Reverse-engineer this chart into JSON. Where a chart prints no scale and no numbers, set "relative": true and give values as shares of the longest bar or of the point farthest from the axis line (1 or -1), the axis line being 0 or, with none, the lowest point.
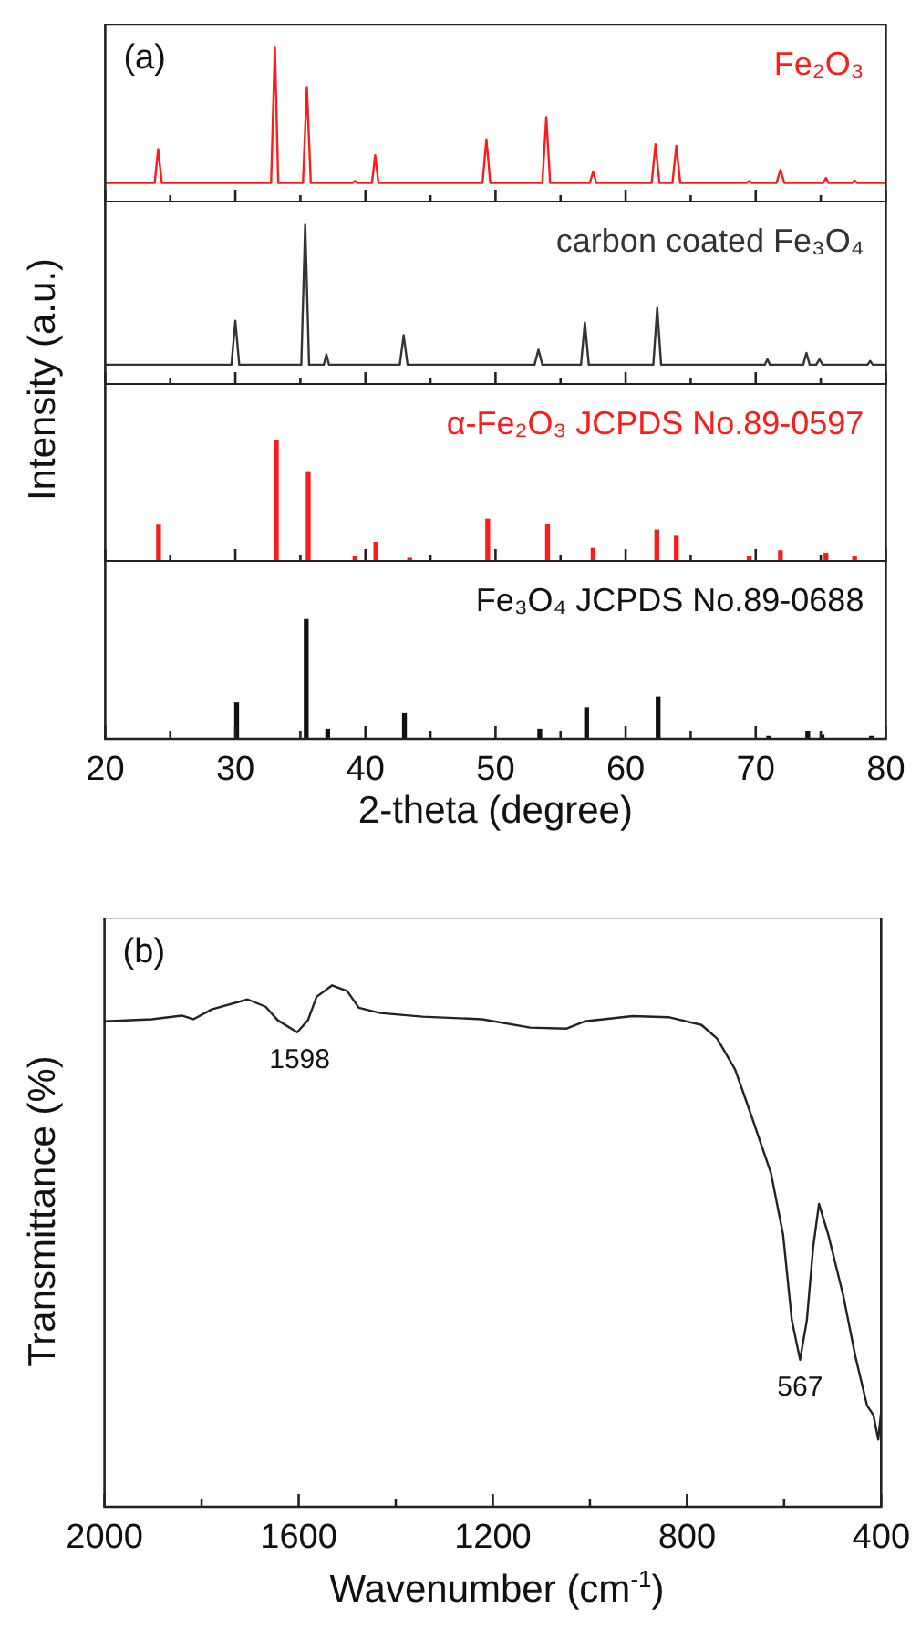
{
  "chart_data": [
    {
      "type": "line",
      "ylabel": "Intensity (a.u.)",
      "relative": true,
      "xlim": [
        20,
        80
      ],
      "xticks": [
        20,
        {
          "value": 25,
          "label": null
        },
        30,
        {
          "value": 35,
          "label": null
        },
        40,
        {
          "value": 45,
          "label": null
        },
        50,
        {
          "value": 55,
          "label": null
        },
        60,
        {
          "value": 65,
          "label": null
        },
        70,
        {
          "value": 75,
          "label": null
        },
        80
      ],
      "tick_labels": false,
      "annotations": [
        "(a)"
      ],
      "series": [
        {
          "name": "Fe₂O₃",
          "color": "#ff1a1a",
          "x": [
            20,
            23.8,
            24.07,
            24.35,
            32.75,
            33.04,
            33.3,
            35.2,
            35.5,
            35.8,
            39.0,
            39.2,
            39.4,
            40.5,
            40.75,
            41.0,
            49.0,
            49.3,
            49.6,
            53.6,
            53.9,
            54.2,
            57.25,
            57.5,
            57.75,
            62.0,
            62.3,
            62.6,
            63.6,
            63.9,
            64.2,
            69.3,
            69.5,
            69.7,
            71.6,
            71.9,
            72.2,
            75.2,
            75.4,
            75.6,
            77.4,
            77.6,
            77.8,
            80
          ],
          "values": [
            0.126,
            0.126,
            0.344,
            0.126,
            0.126,
            1,
            0.126,
            0.126,
            0.743,
            0.126,
            0.126,
            0.138,
            0.126,
            0.126,
            0.304,
            0.126,
            0.126,
            0.407,
            0.126,
            0.126,
            0.549,
            0.126,
            0.126,
            0.198,
            0.126,
            0.126,
            0.375,
            0.126,
            0.126,
            0.364,
            0.126,
            0.126,
            0.138,
            0.126,
            0.126,
            0.21,
            0.126,
            0.126,
            0.158,
            0.126,
            0.126,
            0.142,
            0.126,
            0.126
          ]
        }
      ]
    },
    {
      "type": "line",
      "relative": true,
      "xlim": [
        20,
        80
      ],
      "xticks": [
        20,
        {
          "value": 25,
          "label": null
        },
        30,
        {
          "value": 35,
          "label": null
        },
        40,
        {
          "value": 45,
          "label": null
        },
        50,
        {
          "value": 55,
          "label": null
        },
        60,
        {
          "value": 65,
          "label": null
        },
        70,
        {
          "value": 75,
          "label": null
        },
        80
      ],
      "tick_labels": false,
      "series": [
        {
          "name": "carbon coated Fe₃O₄",
          "color": "#333333",
          "x": [
            20,
            29.7,
            30,
            30.3,
            35.07,
            35.37,
            35.67,
            36.8,
            37,
            37.2,
            42.64,
            42.94,
            43.24,
            53.0,
            53.3,
            53.6,
            56.57,
            56.87,
            57.17,
            62.13,
            62.43,
            62.73,
            70.7,
            70.9,
            71.1,
            73.65,
            73.9,
            74.15,
            74.65,
            74.9,
            75.15,
            78.6,
            78.8,
            79.0,
            80
          ],
          "values": [
            0.126,
            0.126,
            0.4,
            0.126,
            0.126,
            1,
            0.126,
            0.126,
            0.19,
            0.126,
            0.126,
            0.31,
            0.126,
            0.126,
            0.22,
            0.126,
            0.126,
            0.39,
            0.126,
            0.126,
            0.48,
            0.126,
            0.126,
            0.16,
            0.126,
            0.126,
            0.2,
            0.126,
            0.126,
            0.16,
            0.126,
            0.126,
            0.15,
            0.126,
            0.126
          ]
        }
      ]
    },
    {
      "type": "bar",
      "relative": true,
      "xlim": [
        20,
        80
      ],
      "xticks": [
        20,
        {
          "value": 25,
          "label": null
        },
        30,
        {
          "value": 35,
          "label": null
        },
        40,
        {
          "value": 45,
          "label": null
        },
        50,
        {
          "value": 55,
          "label": null
        },
        60,
        {
          "value": 65,
          "label": null
        },
        70,
        {
          "value": 75,
          "label": null
        },
        80
      ],
      "tick_labels": false,
      "series": [
        {
          "name": "α-Fe₂O₃ JCPDS No.89-0597",
          "color": "#ff1a1a",
          "x": [
            24.1,
            33.15,
            35.6,
            39.2,
            40.8,
            43.4,
            49.4,
            54.0,
            57.5,
            62.4,
            63.9,
            69.5,
            71.9,
            75.4,
            77.6
          ],
          "values": [
            0.3,
            1,
            0.74,
            0.04,
            0.16,
            0.03,
            0.35,
            0.31,
            0.11,
            0.26,
            0.21,
            0.04,
            0.09,
            0.07,
            0.04
          ]
        }
      ]
    },
    {
      "type": "bar",
      "xlabel": "2-theta (degree)",
      "relative": true,
      "xlim": [
        20,
        80
      ],
      "xticks": [
        20,
        {
          "value": 25,
          "label": null
        },
        30,
        {
          "value": 35,
          "label": null
        },
        40,
        {
          "value": 45,
          "label": null
        },
        50,
        {
          "value": 55,
          "label": null
        },
        60,
        {
          "value": 65,
          "label": null
        },
        70,
        {
          "value": 75,
          "label": null
        },
        80
      ],
      "tick_labels": "x",
      "series": [
        {
          "name": "Fe₃O₄ JCPDS No.89-0688",
          "color": "#111111",
          "x": [
            30.1,
            35.45,
            37.1,
            43.0,
            53.4,
            57.0,
            62.5,
            71.0,
            74.0,
            75.1,
            78.9
          ],
          "values": [
            0.3,
            1,
            0.08,
            0.21,
            0.08,
            0.26,
            0.35,
            0.02,
            0.06,
            0.03,
            0.02
          ]
        }
      ]
    },
    {
      "type": "line",
      "xlabel": "Wavenumber (cm$^{-1}$)",
      "ylabel": "Transmittance (%)",
      "relative": true,
      "xlim": [
        2000,
        400
      ],
      "xticks": [
        2000,
        {
          "value": 1800,
          "label": null
        },
        1600,
        {
          "value": 1400,
          "label": null
        },
        1200,
        {
          "value": 1000,
          "label": null
        },
        800,
        {
          "value": 600,
          "label": null
        },
        400
      ],
      "tick_labels": "x",
      "annotations": [
        "(b)",
        {
          "text": "1598",
          "x": 1598,
          "y": 0.91
        },
        {
          "text": "567",
          "x": 567,
          "y": 0.282
        }
      ],
      "series": [
        {
          "color": "#222222",
          "x": [
            2000,
            1903,
            1841,
            1817,
            1779,
            1705,
            1668,
            1643,
            1603,
            1581,
            1563,
            1531,
            1500,
            1476,
            1432,
            1345,
            1222,
            1123,
            1049,
            1011,
            912,
            838,
            770,
            738,
            701,
            670,
            627,
            602,
            584,
            567,
            553,
            540,
            528,
            509,
            478,
            453,
            429,
            416,
            406,
            400
          ],
          "values": [
            0.931,
            0.935,
            0.942,
            0.935,
            0.954,
            0.973,
            0.959,
            0.933,
            0.91,
            0.933,
            0.978,
            1,
            0.989,
            0.957,
            0.947,
            0.94,
            0.935,
            0.919,
            0.917,
            0.931,
            0.941,
            0.939,
            0.924,
            0.898,
            0.839,
            0.757,
            0.64,
            0.522,
            0.358,
            0.282,
            0.358,
            0.498,
            0.581,
            0.522,
            0.405,
            0.288,
            0.194,
            0.176,
            0.129,
            0.182
          ]
        }
      ]
    }
  ]
}
